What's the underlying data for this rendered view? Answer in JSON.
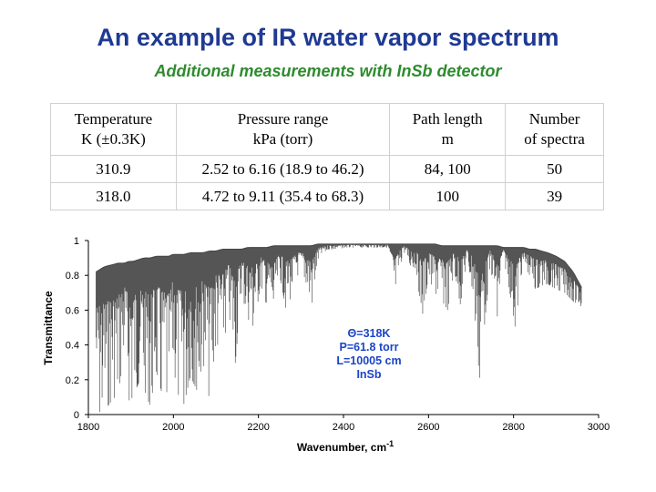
{
  "slide": {
    "title": "An example of IR water vapor spectrum",
    "subtitle": "Additional measurements with InSb detector",
    "colors": {
      "title": "#1f3a93",
      "subtitle": "#2e8b2e",
      "annotation": "#1a44c8"
    }
  },
  "table": {
    "headers": [
      [
        "Temperature",
        "K (±0.3K)"
      ],
      [
        "Pressure range",
        "kPa (torr)"
      ],
      [
        "Path length",
        "m"
      ],
      [
        "Number",
        "of spectra"
      ]
    ],
    "rows": [
      [
        "310.9",
        "2.52 to 6.16 (18.9 to 46.2)",
        "84, 100",
        "50"
      ],
      [
        "318.0",
        "4.72 to 9.11 (35.4 to 68.3)",
        "100",
        "39"
      ]
    ]
  },
  "chart_data": {
    "type": "line",
    "xlabel": "Wavenumber, cm",
    "xlabel_superscript": "-1",
    "ylabel": "Transmittance",
    "xlim": [
      1800,
      3000
    ],
    "ylim": [
      0,
      1
    ],
    "x_ticks": [
      1800,
      2000,
      2200,
      2400,
      2600,
      2800,
      3000
    ],
    "y_ticks": [
      0,
      0.2,
      0.4,
      0.6,
      0.8,
      1
    ],
    "y_tick_labels": [
      "0",
      "0.2",
      "0.4",
      "0.6",
      "0.8",
      "1"
    ],
    "grid": false,
    "annotation": [
      "Θ=318K",
      "P=61.8 torr",
      "L=10005 cm",
      "InSb"
    ],
    "series": [
      {
        "x": [
          1818,
          1838,
          1855,
          1870,
          1885,
          1895,
          1905,
          1918,
          1930,
          1945,
          1960,
          1975,
          1990,
          1998,
          2010,
          2025,
          2040,
          2055,
          2070,
          2085,
          2100,
          2115,
          2130,
          2145,
          2160,
          2175,
          2190,
          2205,
          2220,
          2235,
          2250,
          2265,
          2280,
          2295,
          2310,
          2325,
          2340,
          2350,
          2365,
          2385,
          2405,
          2430,
          2455,
          2480,
          2505,
          2520,
          2540,
          2555,
          2570,
          2585,
          2600,
          2615,
          2630,
          2645,
          2660,
          2675,
          2690,
          2705,
          2720,
          2735,
          2745,
          2752,
          2762,
          2775,
          2790,
          2805,
          2815,
          2825,
          2838,
          2852,
          2865,
          2880,
          2900,
          2920,
          2940,
          2960
        ],
        "baseline": [
          0.82,
          0.85,
          0.86,
          0.87,
          0.87,
          0.88,
          0.88,
          0.89,
          0.9,
          0.9,
          0.91,
          0.91,
          0.91,
          0.92,
          0.92,
          0.92,
          0.93,
          0.93,
          0.93,
          0.94,
          0.94,
          0.95,
          0.95,
          0.95,
          0.95,
          0.96,
          0.96,
          0.96,
          0.96,
          0.97,
          0.97,
          0.97,
          0.97,
          0.97,
          0.97,
          0.97,
          0.98,
          0.98,
          0.98,
          0.98,
          0.98,
          0.98,
          0.98,
          0.98,
          0.98,
          0.98,
          0.98,
          0.98,
          0.98,
          0.98,
          0.98,
          0.98,
          0.97,
          0.97,
          0.97,
          0.97,
          0.97,
          0.97,
          0.97,
          0.97,
          0.97,
          0.97,
          0.97,
          0.96,
          0.96,
          0.96,
          0.96,
          0.96,
          0.95,
          0.95,
          0.94,
          0.93,
          0.91,
          0.88,
          0.82,
          0.73
        ],
        "minimum": [
          0.01,
          0.02,
          0.08,
          0.12,
          0.35,
          0.08,
          0.1,
          0.18,
          0.15,
          0.05,
          0.25,
          0.1,
          0.04,
          0.3,
          0.12,
          0.06,
          0.22,
          0.14,
          0.3,
          0.08,
          0.42,
          0.35,
          0.6,
          0.28,
          0.7,
          0.55,
          0.5,
          0.75,
          0.62,
          0.52,
          0.8,
          0.6,
          0.7,
          0.82,
          0.78,
          0.62,
          0.88,
          0.92,
          0.95,
          0.95,
          0.96,
          0.96,
          0.96,
          0.96,
          0.96,
          0.62,
          0.95,
          0.86,
          0.84,
          0.56,
          0.78,
          0.7,
          0.66,
          0.6,
          0.82,
          0.63,
          0.88,
          0.7,
          0.2,
          0.6,
          0.86,
          0.75,
          0.5,
          0.92,
          0.72,
          0.48,
          0.78,
          0.85,
          0.8,
          0.72,
          0.74,
          0.75,
          0.72,
          0.7,
          0.65,
          0.62
        ]
      }
    ]
  }
}
